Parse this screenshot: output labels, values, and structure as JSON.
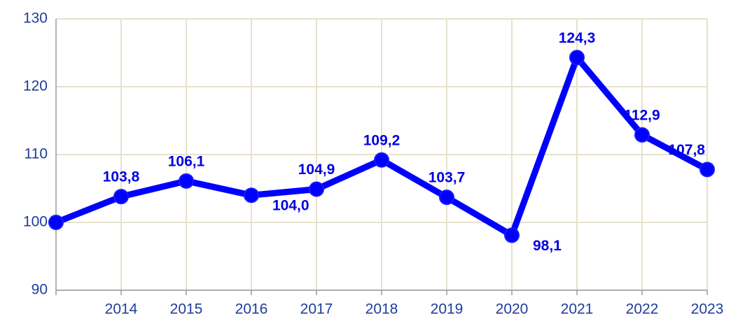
{
  "chart_data": {
    "type": "line",
    "categories": [
      null,
      "2014",
      "2015",
      "2016",
      "2017",
      "2018",
      "2019",
      "2020",
      "2021",
      "2022",
      "2023"
    ],
    "series": [
      {
        "name": null,
        "color": "#0000ff",
        "values": [
          100,
          103.8,
          106.1,
          104.0,
          104.9,
          109.2,
          103.7,
          98.1,
          124.3,
          112.9,
          107.8
        ],
        "value_labels": [
          null,
          "103,8",
          "106,1",
          "104,0",
          "104,9",
          "109,2",
          "103,7",
          "98,1",
          "124,3",
          "112,9",
          "107,8"
        ]
      }
    ],
    "ylim": [
      90,
      130
    ],
    "yticks": [
      90,
      100,
      110,
      120,
      130
    ],
    "grid": true
  }
}
